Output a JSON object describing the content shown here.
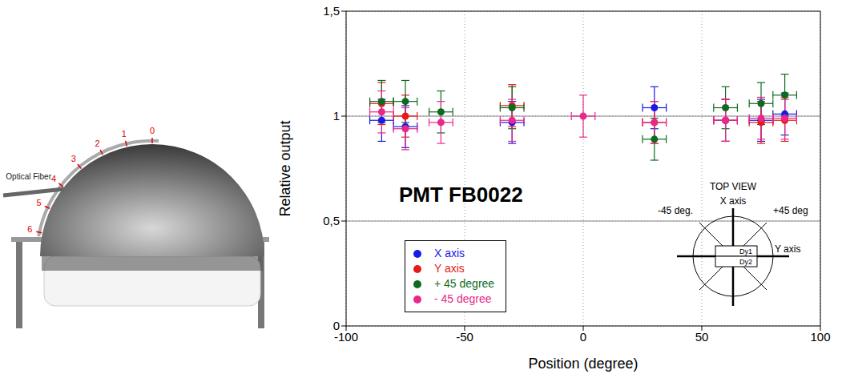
{
  "chart_data": {
    "type": "scatter",
    "x_label": "Position (degree)",
    "y_label": "Relative output",
    "annotation": "PMT FB0022",
    "xlim": [
      -100,
      100
    ],
    "xticks": [
      -100,
      -50,
      0,
      50,
      100
    ],
    "ylim": [
      0,
      1.5
    ],
    "yticks": [
      0,
      {
        "value": 0.5,
        "label": "0,5"
      },
      1,
      {
        "value": 1.5,
        "label": "1,5"
      }
    ],
    "grid": true,
    "legend": "lower left",
    "reference_lines": [
      0.5,
      1
    ],
    "series": [
      {
        "name": "X axis",
        "color": "#1a1ae6",
        "marker": "circle",
        "x": [
          -85,
          -75,
          -30,
          30,
          60,
          75,
          85
        ],
        "values": [
          0.98,
          0.95,
          0.97,
          1.04,
          0.98,
          0.98,
          1.01
        ],
        "x_error": [
          5,
          5,
          5,
          5,
          5,
          5,
          5
        ],
        "y_error": [
          0.1,
          0.1,
          0.1,
          0.1,
          0.1,
          0.1,
          0.1
        ]
      },
      {
        "name": "Y axis",
        "color": "#e61a1a",
        "marker": "circle",
        "x": [
          -85,
          -75,
          -30,
          30,
          60,
          75,
          85
        ],
        "values": [
          1.06,
          1.0,
          1.05,
          0.97,
          0.98,
          0.97,
          0.98
        ],
        "x_error": [
          5,
          5,
          5,
          5,
          5,
          5,
          5
        ],
        "y_error": [
          0.1,
          0.1,
          0.1,
          0.1,
          0.1,
          0.1,
          0.1
        ]
      },
      {
        "name": "+ 45 degree",
        "color": "#0d6b1f",
        "marker": "circle",
        "x": [
          -85,
          -75,
          -60,
          -30,
          30,
          60,
          75,
          85
        ],
        "values": [
          1.07,
          1.07,
          1.02,
          1.04,
          0.89,
          1.04,
          1.06,
          1.1
        ],
        "x_error": [
          5,
          5,
          5,
          5,
          5,
          5,
          5,
          5
        ],
        "y_error": [
          0.1,
          0.1,
          0.1,
          0.1,
          0.1,
          0.1,
          0.1,
          0.1
        ]
      },
      {
        "name": "- 45 degree",
        "color": "#e8288a",
        "marker": "circle",
        "x": [
          -85,
          -75,
          -60,
          -30,
          0,
          30,
          60,
          75,
          85
        ],
        "values": [
          1.02,
          0.94,
          0.97,
          0.98,
          1.0,
          0.97,
          0.98,
          0.99,
          0.99
        ],
        "x_error": [
          5,
          5,
          5,
          5,
          5,
          5,
          5,
          5,
          5
        ],
        "y_error": [
          0.1,
          0.1,
          0.1,
          0.1,
          0.1,
          0.1,
          0.1,
          0.1,
          0.1
        ]
      }
    ],
    "inset": {
      "title": "TOP VIEW",
      "x_axis": "X axis",
      "minus_45": "-45 deg.",
      "plus_45": "+45 deg",
      "y_axis": "Y axis",
      "dynode_1": "Dy1",
      "dynode_2": "Dy2"
    }
  },
  "photo": {
    "fiber_label": "Optical Fiber",
    "scale_labels": [
      0,
      1,
      2,
      3,
      4,
      5,
      6
    ]
  }
}
